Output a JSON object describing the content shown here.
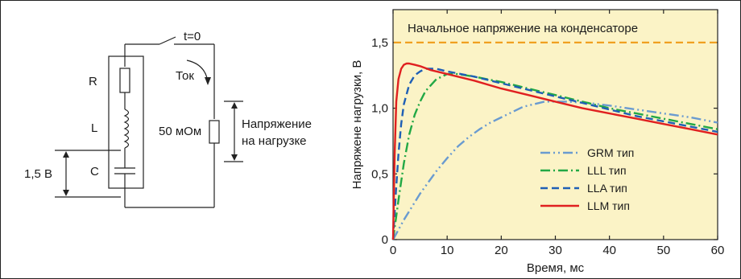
{
  "circuit": {
    "labels": {
      "r": "R",
      "l": "L",
      "c": "C",
      "switch_time": "t=0",
      "current": "Ток",
      "load_resistance": "50 мОм",
      "load_voltage_line1": "Напряжение",
      "load_voltage_line2": "на нагрузке",
      "source_voltage": "1,5 В"
    }
  },
  "chart_data": {
    "type": "line",
    "xlabel": "Время, мс",
    "ylabel": "Напряжене нагрузки, В",
    "xlim": [
      0,
      60
    ],
    "ylim": [
      0,
      1.75
    ],
    "xticks": [
      "0",
      "10",
      "20",
      "30",
      "40",
      "50",
      "60"
    ],
    "yticks": [
      "0",
      "0,5",
      "1,0",
      "1,5"
    ],
    "background": "#fbf3c6",
    "grid": false,
    "legend_position": "center-right",
    "annotation": {
      "text": "Начальное напряжение на конденсаторе",
      "y": 1.5,
      "color": "#f0a020"
    },
    "series": [
      {
        "name": "GRM тип",
        "color": "#6a9bd0",
        "style": "dash-dot-dot",
        "x": [
          0,
          2,
          5,
          8,
          10,
          12,
          14,
          16,
          18,
          20,
          24,
          28,
          32,
          36,
          40,
          45,
          50,
          55,
          60
        ],
        "y": [
          0,
          0.15,
          0.35,
          0.52,
          0.62,
          0.71,
          0.78,
          0.84,
          0.89,
          0.93,
          1.01,
          1.05,
          1.05,
          1.04,
          1.02,
          0.99,
          0.96,
          0.93,
          0.89
        ]
      },
      {
        "name": "LLL тип",
        "color": "#22a845",
        "style": "dash-dot",
        "x": [
          0,
          1,
          2,
          3,
          4,
          5,
          6,
          8,
          10,
          12,
          15,
          20,
          25,
          30,
          35,
          40,
          45,
          50,
          55,
          60
        ],
        "y": [
          0,
          0.3,
          0.58,
          0.8,
          0.95,
          1.05,
          1.13,
          1.22,
          1.26,
          1.26,
          1.24,
          1.2,
          1.15,
          1.1,
          1.05,
          1.0,
          0.96,
          0.92,
          0.88,
          0.84
        ]
      },
      {
        "name": "LLA тип",
        "color": "#1f5fb5",
        "style": "dashed",
        "x": [
          0,
          0.5,
          1,
          1.5,
          2,
          3,
          4,
          5,
          6,
          8,
          10,
          15,
          20,
          25,
          30,
          35,
          40,
          45,
          50,
          55,
          60
        ],
        "y": [
          0,
          0.35,
          0.65,
          0.88,
          1.03,
          1.18,
          1.25,
          1.28,
          1.3,
          1.3,
          1.28,
          1.24,
          1.19,
          1.14,
          1.09,
          1.04,
          0.99,
          0.94,
          0.9,
          0.86,
          0.82
        ]
      },
      {
        "name": "LLM тип",
        "color": "#e02020",
        "style": "solid",
        "x": [
          0,
          0.3,
          0.6,
          1,
          1.5,
          2,
          2.5,
          3,
          4,
          5,
          7,
          10,
          15,
          20,
          25,
          30,
          35,
          40,
          45,
          50,
          55,
          60
        ],
        "y": [
          0,
          0.65,
          1.05,
          1.22,
          1.3,
          1.33,
          1.34,
          1.34,
          1.33,
          1.32,
          1.29,
          1.26,
          1.21,
          1.15,
          1.1,
          1.05,
          1.0,
          0.96,
          0.92,
          0.88,
          0.84,
          0.8
        ]
      }
    ]
  }
}
